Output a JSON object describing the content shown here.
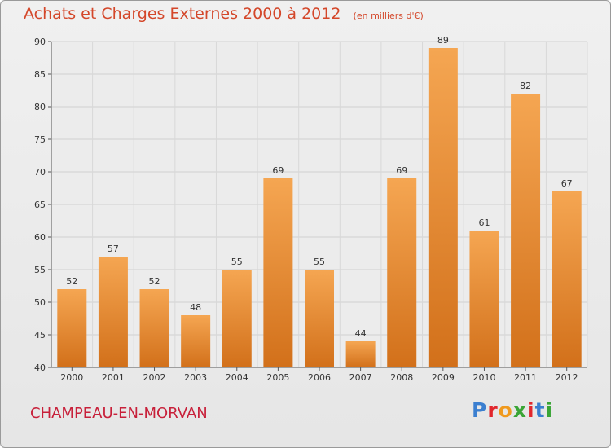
{
  "chart_data": {
    "type": "bar",
    "title": "Achats et Charges Externes 2000 à 2012",
    "subtitle": "(en milliers d'€)",
    "xlabel": "",
    "ylabel": "",
    "categories": [
      "2000",
      "2001",
      "2002",
      "2003",
      "2004",
      "2005",
      "2006",
      "2007",
      "2008",
      "2009",
      "2010",
      "2011",
      "2012"
    ],
    "values": [
      52,
      57,
      52,
      48,
      55,
      69,
      55,
      44,
      69,
      89,
      61,
      82,
      67
    ],
    "ylim": [
      40,
      90
    ],
    "yticks": [
      40,
      45,
      50,
      55,
      60,
      65,
      70,
      75,
      80,
      85,
      90
    ],
    "grid": true,
    "bar_color": "#f0922e"
  },
  "footer": {
    "commune": "CHAMPEAU-EN-MORVAN",
    "logo_letters": [
      "P",
      "r",
      "o",
      "x",
      "i",
      "t",
      "i"
    ]
  }
}
